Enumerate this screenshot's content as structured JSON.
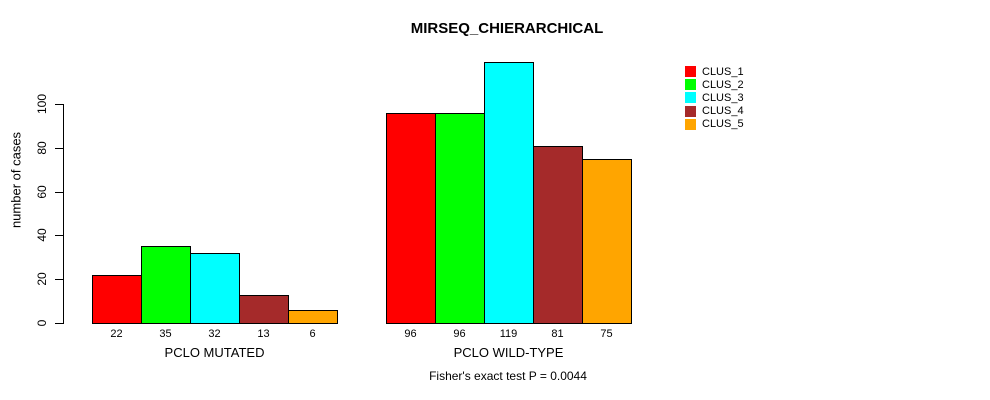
{
  "chart_data": {
    "type": "bar",
    "title": "MIRSEQ_CHIERARCHICAL",
    "ylabel": "number of cases",
    "xlabel": "",
    "categories": [
      "PCLO MUTATED",
      "PCLO WILD-TYPE"
    ],
    "series": [
      {
        "name": "CLUS_1",
        "color": "#ff0000",
        "values": [
          22,
          96
        ]
      },
      {
        "name": "CLUS_2",
        "color": "#00ff00",
        "values": [
          35,
          96
        ]
      },
      {
        "name": "CLUS_3",
        "color": "#00ffff",
        "values": [
          32,
          119
        ]
      },
      {
        "name": "CLUS_4",
        "color": "#a52a2a",
        "values": [
          13,
          81
        ]
      },
      {
        "name": "CLUS_5",
        "color": "#ffa500",
        "values": [
          6,
          75
        ]
      }
    ],
    "yticks": [
      0,
      20,
      40,
      60,
      80,
      100
    ],
    "ylim": [
      0,
      100
    ],
    "bar_value_labels": true,
    "grid": false,
    "legend_position": "topright",
    "annotation": "Fisher's exact test P = 0.0044"
  }
}
